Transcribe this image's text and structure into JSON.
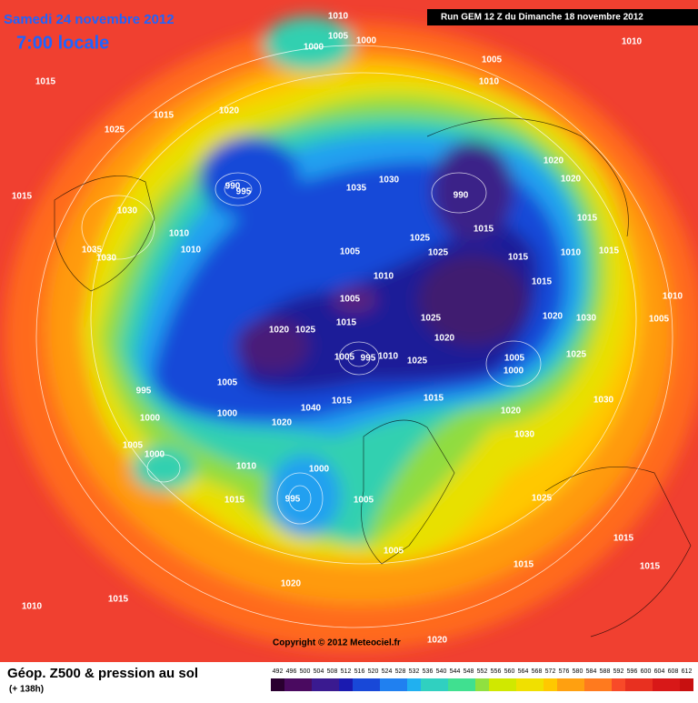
{
  "header": {
    "title": "Samedi 24 novembre 2012",
    "subtitle": "7:00 locale",
    "run": "Run GEM 12 Z du Dimanche 18 novembre 2012"
  },
  "map": {
    "copyright": "Copyright © 2012 Meteociel.fr",
    "isobar_labels": [
      1010,
      1005,
      1000,
      1000,
      1010,
      1005,
      1010,
      1015,
      1015,
      1020,
      1025,
      1015,
      1030,
      1035,
      1030,
      990,
      995,
      1035,
      1030,
      990,
      1020,
      1020,
      1015,
      1015,
      1010,
      1015,
      1010,
      1005,
      1030,
      1020,
      1025,
      1005,
      1000,
      1025,
      1020,
      1015,
      1005,
      1010,
      1005,
      1025,
      1025,
      1015,
      1015,
      1020,
      1025,
      1005,
      995,
      1010,
      1025,
      1015,
      1015,
      1040,
      1020,
      1000,
      1005,
      995,
      1000,
      1005,
      1000,
      1010,
      1000,
      995,
      1015,
      1005,
      1005,
      1020,
      1030,
      1030,
      1025,
      1015,
      1015,
      1015,
      1010,
      1015,
      1020,
      1020,
      1010,
      1010
    ]
  },
  "footer": {
    "label": "Géop. Z500 & pression au sol",
    "lead": "(+ 138h)",
    "scale": [
      492,
      496,
      500,
      504,
      508,
      512,
      516,
      520,
      524,
      528,
      532,
      536,
      540,
      544,
      548,
      552,
      556,
      560,
      564,
      568,
      572,
      576,
      580,
      584,
      588,
      592,
      596,
      600,
      604,
      608,
      612
    ]
  }
}
